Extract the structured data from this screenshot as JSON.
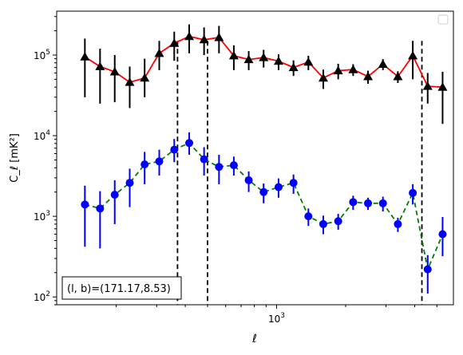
{
  "chart_data": {
    "type": "scatter",
    "xlabel": "ℓ",
    "ylabel": "C_ℓ  [mK²]",
    "xscale": "log",
    "yscale": "log",
    "xlim": [
      110,
      5900
    ],
    "ylim": [
      80,
      350000
    ],
    "x_tick_labels": [
      {
        "value": 1000,
        "base": "10",
        "exp": "3"
      }
    ],
    "y_tick_labels": [
      {
        "value": 100,
        "base": "10",
        "exp": "2"
      },
      {
        "value": 1000,
        "base": "10",
        "exp": "3"
      },
      {
        "value": 10000,
        "base": "10",
        "exp": "4"
      },
      {
        "value": 100000,
        "base": "10",
        "exp": "5"
      }
    ],
    "annotation": "(l, b)=(171.17,8.53)",
    "vertical_lines": [
      370,
      500,
      4300
    ],
    "legend": "top-right",
    "series": [
      {
        "marker": "triangle",
        "marker_color": "#000000",
        "errorbar_color": "#000000",
        "fit_color": "#ff0000",
        "fit_style": "solid",
        "x": [
          146,
          170,
          197,
          229,
          266,
          308,
          358,
          416,
          483,
          561,
          651,
          756,
          878,
          1020,
          1185,
          1376,
          1598,
          1856,
          2156,
          2504,
          2908,
          3378,
          3924,
          4557,
          5293,
          6148
        ],
        "y": [
          95000,
          72000,
          62000,
          46000,
          52000,
          105000,
          140000,
          170000,
          155000,
          165000,
          98000,
          88000,
          93000,
          84000,
          70000,
          82000,
          52000,
          64000,
          66000,
          54000,
          77000,
          54000,
          98000,
          41000,
          40000,
          41000
        ],
        "y_low": [
          30000,
          25000,
          26000,
          22000,
          30000,
          65000,
          85000,
          105000,
          100000,
          105000,
          65000,
          65000,
          70000,
          65000,
          55000,
          65000,
          38000,
          50000,
          55000,
          44000,
          65000,
          45000,
          50000,
          25000,
          14000,
          14000
        ],
        "y_high": [
          160000,
          120000,
          100000,
          72000,
          90000,
          150000,
          195000,
          240000,
          220000,
          230000,
          132000,
          112000,
          116000,
          102000,
          86000,
          98000,
          66000,
          78000,
          77000,
          64000,
          89000,
          63000,
          150000,
          60000,
          62000,
          62000
        ]
      },
      {
        "marker": "circle",
        "marker_color": "#0000ff",
        "errorbar_color": "#0000ff",
        "fit_color": "#008000",
        "fit_style": "dashed",
        "x": [
          146,
          170,
          197,
          229,
          266,
          308,
          358,
          416,
          483,
          561,
          651,
          756,
          878,
          1020,
          1185,
          1376,
          1598,
          1856,
          2156,
          2504,
          2908,
          3378,
          3924,
          4557,
          5293,
          6148
        ],
        "y": [
          1400,
          1250,
          1850,
          2600,
          4400,
          4800,
          6700,
          8100,
          5100,
          4100,
          4300,
          2800,
          2000,
          2300,
          2600,
          1000,
          800,
          870,
          1500,
          1450,
          1450,
          800,
          1950,
          220,
          600,
          600
        ],
        "y_low": [
          420,
          400,
          800,
          1300,
          2500,
          3200,
          4700,
          5800,
          3200,
          2500,
          3200,
          2000,
          1450,
          1700,
          1900,
          760,
          600,
          680,
          1200,
          1200,
          1150,
          640,
          1400,
          110,
          320,
          320
        ],
        "y_high": [
          2400,
          2050,
          2800,
          3900,
          6300,
          6700,
          9100,
          11000,
          7200,
          5800,
          5500,
          3600,
          2550,
          2950,
          3300,
          1250,
          1020,
          1070,
          1800,
          1700,
          1750,
          960,
          2500,
          330,
          980,
          980
        ]
      }
    ]
  }
}
